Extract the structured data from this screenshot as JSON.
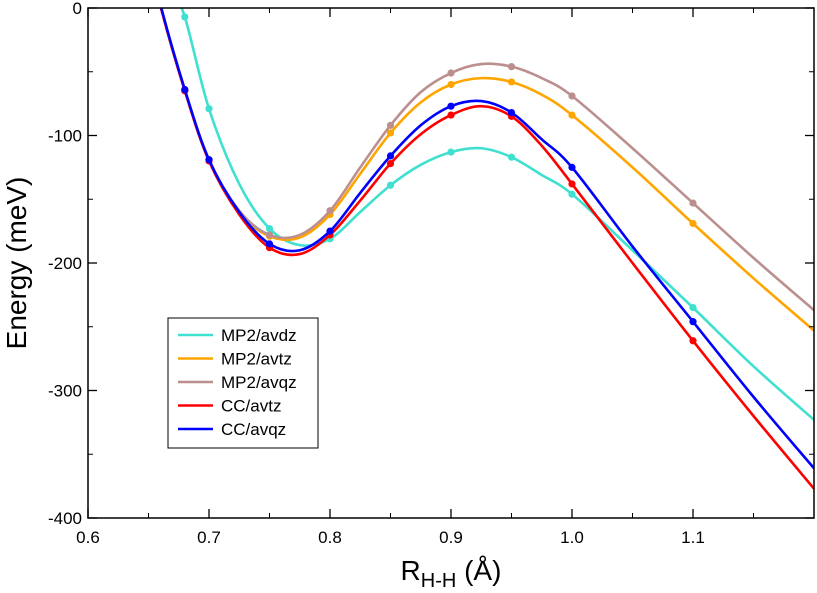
{
  "chart_data": {
    "type": "line",
    "title": "",
    "xlabel": {
      "main": "R",
      "sub": "H-H",
      "unit": "(Å)"
    },
    "ylabel": "Energy (meV)",
    "xlim": [
      0.6,
      1.2
    ],
    "ylim": [
      -400,
      0
    ],
    "xticks": [
      0.6,
      0.7,
      0.8,
      0.9,
      1.0,
      1.1
    ],
    "xtick_labels": [
      "0.6",
      "0.7",
      "0.8",
      "0.9",
      "1.0",
      "1.1"
    ],
    "yticks": [
      0,
      -100,
      -200,
      -300,
      -400
    ],
    "ytick_labels": [
      "0",
      "-100",
      "-200",
      "-300",
      "-400"
    ],
    "grid": false,
    "legend_position": "lower-left",
    "series": [
      {
        "name": "MP2/avdz",
        "color": "#40E0D0",
        "x": [
          0.68,
          0.7,
          0.75,
          0.8,
          0.85,
          0.9,
          0.95,
          1.0,
          1.1
        ],
        "y": [
          -7,
          -79,
          -173,
          -181,
          -139,
          -113,
          -117,
          -146,
          -235
        ],
        "curve_x": [
          0.66,
          0.665,
          0.68,
          0.7,
          0.725,
          0.75,
          0.775,
          0.8,
          0.825,
          0.85,
          0.875,
          0.9,
          0.925,
          0.95,
          0.975,
          1.0,
          1.05,
          1.1,
          1.15,
          1.2
        ],
        "curve_y": [
          50,
          27,
          -7,
          -79,
          -138,
          -173,
          -186,
          -181,
          -160,
          -139,
          -123,
          -113,
          -110,
          -117,
          -131,
          -146,
          -190,
          -235,
          -281,
          -323
        ]
      },
      {
        "name": "MP2/avtz",
        "color": "#FFA500",
        "x": [
          0.68,
          0.7,
          0.75,
          0.8,
          0.85,
          0.9,
          0.95,
          1.0,
          1.1
        ],
        "y": [
          -64,
          -119,
          -179,
          -162,
          -98,
          -60,
          -58,
          -84,
          -169
        ],
        "curve_x": [
          0.655,
          0.66,
          0.68,
          0.7,
          0.725,
          0.75,
          0.775,
          0.8,
          0.825,
          0.85,
          0.875,
          0.9,
          0.925,
          0.95,
          0.975,
          1.0,
          1.05,
          1.1,
          1.15,
          1.2
        ],
        "curve_y": [
          26,
          2,
          -64,
          -119,
          -160,
          -179,
          -180,
          -162,
          -130,
          -98,
          -74,
          -60,
          -55,
          -58,
          -68,
          -84,
          -125,
          -169,
          -212,
          -253
        ]
      },
      {
        "name": "MP2/avqz",
        "color": "#BC8F8F",
        "x": [
          0.68,
          0.7,
          0.75,
          0.8,
          0.85,
          0.9,
          0.95,
          1.0,
          1.1
        ],
        "y": [
          -64,
          -119,
          -178,
          -159,
          -92,
          -51,
          -46,
          -69,
          -153
        ],
        "curve_x": [
          0.655,
          0.66,
          0.68,
          0.7,
          0.725,
          0.75,
          0.775,
          0.8,
          0.825,
          0.85,
          0.875,
          0.9,
          0.925,
          0.95,
          0.975,
          1.0,
          1.05,
          1.1,
          1.15,
          1.2
        ],
        "curve_y": [
          26,
          2,
          -64,
          -119,
          -159,
          -178,
          -178,
          -159,
          -125,
          -92,
          -66,
          -51,
          -44,
          -46,
          -55,
          -69,
          -110,
          -153,
          -196,
          -237
        ]
      },
      {
        "name": "CC/avtz",
        "color": "#FF0000",
        "x": [
          0.68,
          0.7,
          0.75,
          0.8,
          0.85,
          0.9,
          0.95,
          1.0,
          1.1
        ],
        "y": [
          -65,
          -120,
          -188,
          -178,
          -122,
          -84,
          -85,
          -138,
          -261
        ],
        "curve_x": [
          0.655,
          0.66,
          0.68,
          0.7,
          0.725,
          0.75,
          0.775,
          0.8,
          0.825,
          0.85,
          0.875,
          0.9,
          0.925,
          0.95,
          0.975,
          1.0,
          1.05,
          1.1,
          1.15,
          1.2
        ],
        "curve_y": [
          25,
          1,
          -65,
          -120,
          -162,
          -188,
          -193,
          -178,
          -151,
          -122,
          -99,
          -84,
          -77,
          -85,
          -108,
          -138,
          -200,
          -261,
          -320,
          -377
        ]
      },
      {
        "name": "CC/avqz",
        "color": "#0000FF",
        "x": [
          0.68,
          0.7,
          0.75,
          0.8,
          0.85,
          0.9,
          0.95,
          1.0,
          1.1
        ],
        "y": [
          -64,
          -119,
          -185,
          -175,
          -116,
          -77,
          -82,
          -125,
          -246
        ],
        "curve_x": [
          0.655,
          0.66,
          0.68,
          0.7,
          0.725,
          0.75,
          0.775,
          0.8,
          0.825,
          0.85,
          0.875,
          0.9,
          0.925,
          0.95,
          0.975,
          1.0,
          1.05,
          1.1,
          1.15,
          1.2
        ],
        "curve_y": [
          26,
          2,
          -64,
          -119,
          -160,
          -185,
          -190,
          -175,
          -145,
          -116,
          -92,
          -77,
          -73,
          -82,
          -103,
          -125,
          -187,
          -246,
          -305,
          -361
        ]
      }
    ]
  }
}
